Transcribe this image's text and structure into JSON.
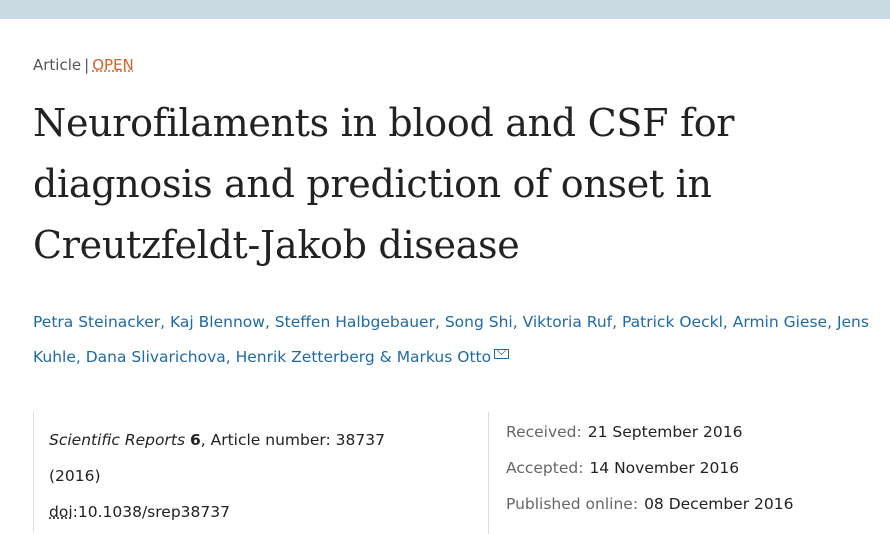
{
  "header": {
    "bar_color": "#cbd9e2"
  },
  "article": {
    "type": "Article",
    "separator": "|",
    "access": "OPEN",
    "title": "Neurofilaments in blood and CSF for diagnosis and prediction of onset in Creutzfeldt-Jakob disease",
    "authors": [
      "Petra Steinacker",
      "Kaj Blennow",
      "Steffen Halbgebauer",
      "Song Shi",
      "Viktoria Ruf",
      "Patrick Oeckl",
      "Armin Giese",
      "Jens Kuhle",
      "Dana Slivarichova",
      "Henrik Zetterberg",
      "Markus Otto"
    ],
    "author_sep": ", ",
    "author_last_sep": " & ",
    "mail_icon": "envelope-icon"
  },
  "citation": {
    "journal": "Scientific Reports",
    "volume": "6",
    "article_number_label": ", Article number: 38737",
    "year": "(2016)",
    "doi_label": "doi",
    "doi_value": ":10.1038/srep38737"
  },
  "dates": {
    "received_label": "Received:",
    "received": "21 September 2016",
    "accepted_label": "Accepted:",
    "accepted": "14 November 2016",
    "published_label": "Published online:",
    "published": "08 December 2016"
  },
  "colors": {
    "link": "#1f6aa5",
    "open": "#d4622a"
  }
}
